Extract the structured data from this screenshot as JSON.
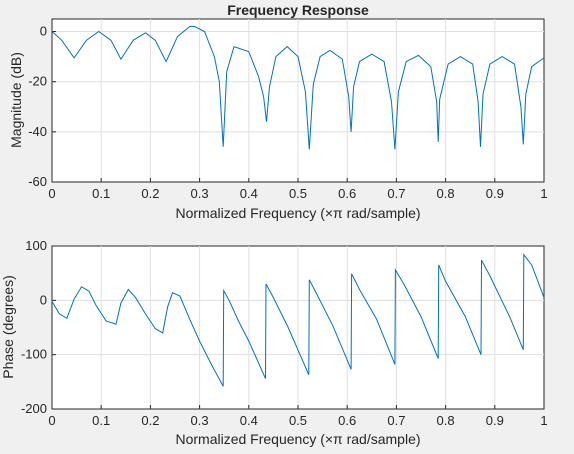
{
  "chart_data": [
    {
      "type": "line",
      "title": "Frequency Response",
      "xlabel": "Normalized Frequency  (×π rad/sample)",
      "ylabel": "Magnitude (dB)",
      "xlim": [
        0,
        1
      ],
      "ylim": [
        -60,
        5
      ],
      "xticks": [
        0,
        0.1,
        0.2,
        0.3,
        0.4,
        0.5,
        0.6,
        0.7,
        0.8,
        0.9,
        1
      ],
      "xtick_labels": [
        "0",
        "0.1",
        "0.2",
        "0.3",
        "0.4",
        "0.5",
        "0.6",
        "0.7",
        "0.8",
        "0.9",
        "1"
      ],
      "yticks": [
        -60,
        -40,
        -20,
        0
      ],
      "ytick_labels": [
        "-60",
        "-40",
        "-20",
        "0"
      ],
      "grid": true,
      "line_color": "#0072bd",
      "x": [
        0,
        0.02,
        0.045,
        0.07,
        0.095,
        0.12,
        0.14,
        0.165,
        0.19,
        0.21,
        0.232,
        0.255,
        0.28,
        0.29,
        0.31,
        0.33,
        0.34,
        0.348,
        0.355,
        0.37,
        0.4,
        0.42,
        0.43,
        0.436,
        0.442,
        0.455,
        0.478,
        0.5,
        0.515,
        0.523,
        0.531,
        0.545,
        0.565,
        0.59,
        0.603,
        0.608,
        0.613,
        0.625,
        0.65,
        0.675,
        0.69,
        0.697,
        0.704,
        0.72,
        0.745,
        0.77,
        0.782,
        0.785,
        0.788,
        0.805,
        0.83,
        0.855,
        0.866,
        0.871,
        0.876,
        0.89,
        0.915,
        0.94,
        0.953,
        0.958,
        0.963,
        0.975,
        1
      ],
      "y": [
        0,
        -3.5,
        -10.5,
        -3.5,
        0,
        -3.5,
        -11,
        -3.5,
        -0.5,
        -3.5,
        -12,
        -2,
        2,
        2,
        0,
        -10,
        -20,
        -46,
        -16,
        -6,
        -8,
        -18,
        -26,
        -36,
        -22,
        -10,
        -6,
        -10,
        -24,
        -47,
        -21,
        -10,
        -7.5,
        -11,
        -26,
        -40,
        -22,
        -12,
        -9,
        -12,
        -28,
        -47,
        -24,
        -12,
        -9.5,
        -14,
        -28,
        -44,
        -27,
        -13,
        -10,
        -13,
        -28,
        -46,
        -25,
        -13,
        -10,
        -13,
        -30,
        -45,
        -25,
        -14,
        -10.5
      ]
    },
    {
      "type": "line",
      "title": "",
      "xlabel": "Normalized Frequency  (×π rad/sample)",
      "ylabel": "Phase (degrees)",
      "xlim": [
        0,
        1
      ],
      "ylim": [
        -200,
        100
      ],
      "xticks": [
        0,
        0.1,
        0.2,
        0.3,
        0.4,
        0.5,
        0.6,
        0.7,
        0.8,
        0.9,
        1
      ],
      "xtick_labels": [
        "0",
        "0.1",
        "0.2",
        "0.3",
        "0.4",
        "0.5",
        "0.6",
        "0.7",
        "0.8",
        "0.9",
        "1"
      ],
      "yticks": [
        -200,
        -100,
        0,
        100
      ],
      "ytick_labels": [
        "-200",
        "-100",
        "0",
        "100"
      ],
      "grid": true,
      "line_color": "#0072bd",
      "x": [
        0,
        0.015,
        0.03,
        0.045,
        0.06,
        0.075,
        0.09,
        0.11,
        0.13,
        0.14,
        0.155,
        0.17,
        0.19,
        0.21,
        0.225,
        0.235,
        0.245,
        0.26,
        0.28,
        0.3,
        0.325,
        0.348,
        0.349,
        0.36,
        0.38,
        0.4,
        0.434,
        0.435,
        0.45,
        0.48,
        0.522,
        0.523,
        0.54,
        0.57,
        0.608,
        0.609,
        0.625,
        0.66,
        0.697,
        0.698,
        0.715,
        0.75,
        0.785,
        0.786,
        0.8,
        0.84,
        0.872,
        0.873,
        0.89,
        0.93,
        0.958,
        0.959,
        0.975,
        1
      ],
      "y": [
        -2,
        -25,
        -33,
        2,
        25,
        17,
        -10,
        -38,
        -44,
        -5,
        20,
        5,
        -25,
        -52,
        -60,
        -12,
        14,
        8,
        -35,
        -75,
        -120,
        -158,
        18,
        0,
        -40,
        -75,
        -144,
        30,
        5,
        -50,
        -137,
        38,
        8,
        -45,
        -127,
        49,
        20,
        -35,
        -118,
        56,
        30,
        -30,
        -107,
        65,
        35,
        -30,
        -100,
        74,
        45,
        -30,
        -91,
        84,
        65,
        5
      ]
    }
  ]
}
